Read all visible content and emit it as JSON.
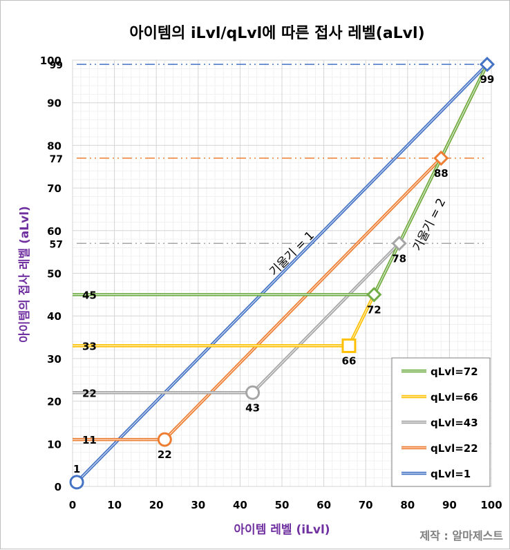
{
  "chart_data": {
    "type": "line",
    "title": "아이템의 iLvl/qLvl에 따른 접사 레벨(aLvl)",
    "xlabel": "아이템 레벨 (iLvl)",
    "ylabel": "아이템의 접사 레벨 (aLvl)",
    "credit": "제작 : 알마제스트",
    "xlim": [
      0,
      100
    ],
    "ylim": [
      0,
      100
    ],
    "x_ticks": [
      "0",
      "10",
      "20",
      "30",
      "40",
      "50",
      "60",
      "70",
      "80",
      "90",
      "100"
    ],
    "y_ticks": [
      "0",
      "10",
      "20",
      "30",
      "40",
      "50",
      "60",
      "70",
      "80",
      "90",
      "100"
    ],
    "grid": true,
    "legend_position": "bottom-right",
    "series": [
      {
        "name": "qLvl=72",
        "color": "#70ad47",
        "points": [
          [
            0,
            45
          ],
          [
            72,
            45
          ],
          [
            78,
            57
          ],
          [
            88,
            77
          ],
          [
            99,
            99
          ]
        ]
      },
      {
        "name": "qLvl=66",
        "color": "#ffc000",
        "points": [
          [
            0,
            33
          ],
          [
            66,
            33
          ],
          [
            72,
            45
          ],
          [
            78,
            57
          ],
          [
            88,
            77
          ],
          [
            99,
            99
          ]
        ]
      },
      {
        "name": "qLvl=43",
        "color": "#a5a5a5",
        "points": [
          [
            0,
            22
          ],
          [
            43,
            22
          ],
          [
            78,
            57
          ],
          [
            88,
            77
          ],
          [
            99,
            99
          ]
        ]
      },
      {
        "name": "qLvl=22",
        "color": "#ed7d31",
        "points": [
          [
            0,
            11
          ],
          [
            22,
            11
          ],
          [
            88,
            77
          ],
          [
            99,
            99
          ]
        ]
      },
      {
        "name": "qLvl=1",
        "color": "#4472c4",
        "points": [
          [
            1,
            1
          ],
          [
            99,
            99
          ]
        ]
      }
    ],
    "reference_lines": [
      {
        "y": 99,
        "label": "99",
        "color": "#4472c4"
      },
      {
        "y": 77,
        "label": "77",
        "color": "#ed7d31"
      },
      {
        "y": 57,
        "label": "57",
        "color": "#a5a5a5"
      }
    ],
    "level_labels": [
      {
        "y": 45,
        "text": "45"
      },
      {
        "y": 33,
        "text": "33"
      },
      {
        "y": 22,
        "text": "22"
      },
      {
        "y": 11,
        "text": "11"
      }
    ],
    "markers": [
      {
        "x": 1,
        "y": 1,
        "shape": "circle",
        "color": "#4472c4",
        "label": "1",
        "label_pos": "above"
      },
      {
        "x": 22,
        "y": 11,
        "shape": "circle",
        "color": "#ed7d31",
        "label": "22",
        "label_pos": "below"
      },
      {
        "x": 43,
        "y": 22,
        "shape": "circle",
        "color": "#a5a5a5",
        "label": "43",
        "label_pos": "below"
      },
      {
        "x": 66,
        "y": 33,
        "shape": "square",
        "color": "#ffc000",
        "label": "66",
        "label_pos": "below"
      },
      {
        "x": 72,
        "y": 45,
        "shape": "diamond",
        "color": "#70ad47",
        "label": "72",
        "label_pos": "below"
      },
      {
        "x": 78,
        "y": 57,
        "shape": "diamond",
        "color": "#a5a5a5",
        "label": "78",
        "label_pos": "below"
      },
      {
        "x": 88,
        "y": 77,
        "shape": "diamond",
        "color": "#ed7d31",
        "label": "88",
        "label_pos": "below"
      },
      {
        "x": 99,
        "y": 99,
        "shape": "diamond",
        "color": "#4472c4",
        "label": "99",
        "label_pos": "below"
      }
    ],
    "annotations": [
      {
        "text": "기울기 = 1",
        "x": 53,
        "y": 54,
        "rotate": -45
      },
      {
        "text": "기울기 = 2",
        "x": 86,
        "y": 61,
        "rotate": -63
      }
    ]
  }
}
